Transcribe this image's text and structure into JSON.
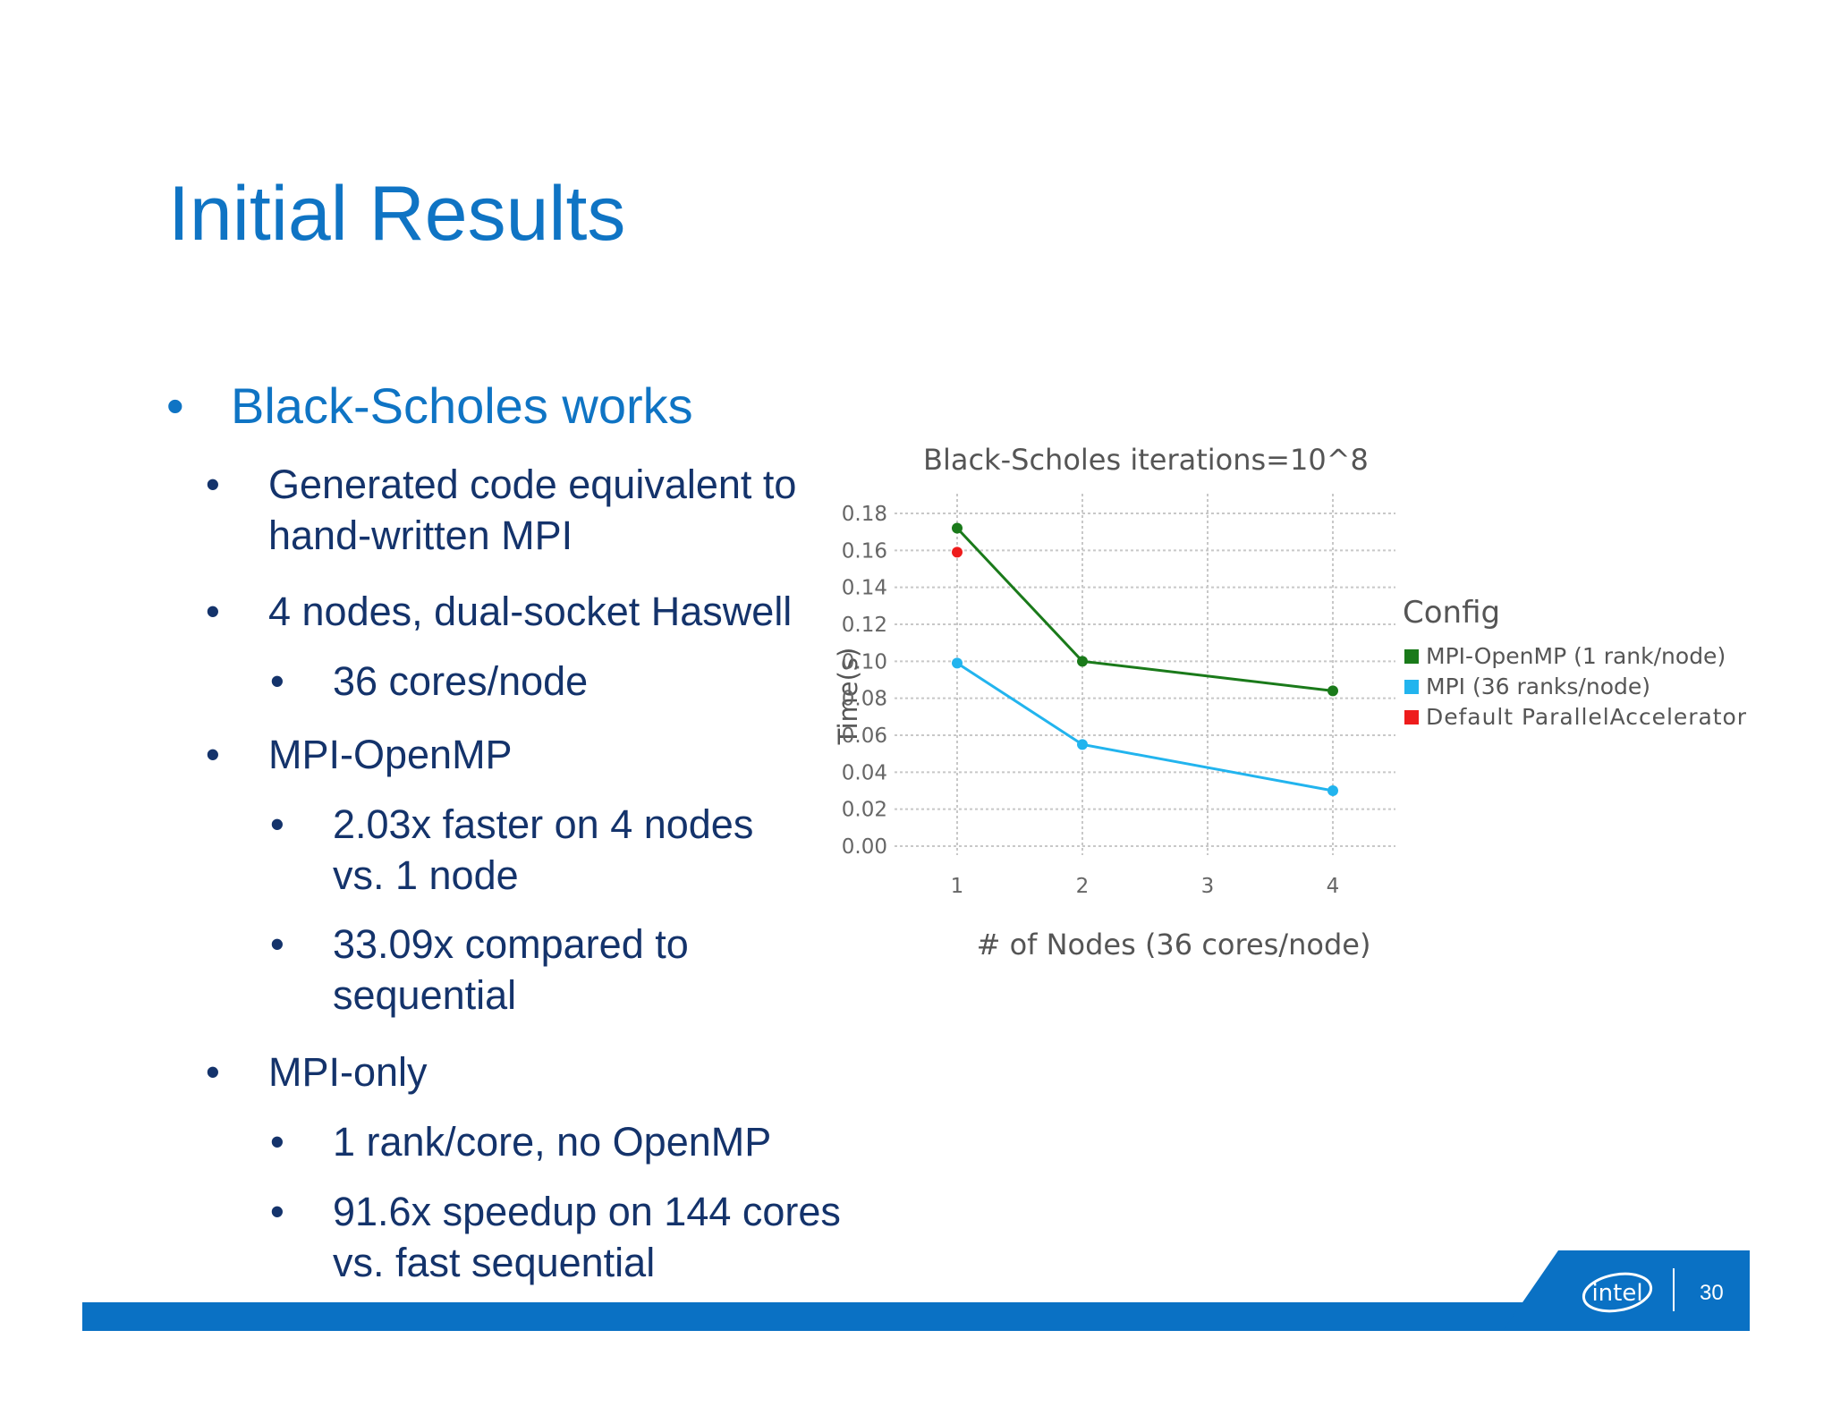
{
  "slide": {
    "title": "Initial Results",
    "page_number": "30",
    "logo_text": "intel"
  },
  "bullets": [
    {
      "level": 1,
      "text": "Black-Scholes works"
    },
    {
      "level": 2,
      "text": "Generated code equivalent to"
    },
    {
      "level": 2,
      "text": "hand-written MPI",
      "cont": true
    },
    {
      "level": 2,
      "text": "4 nodes, dual-socket Haswell"
    },
    {
      "level": 3,
      "text": "36 cores/node"
    },
    {
      "level": 2,
      "text": "MPI-OpenMP"
    },
    {
      "level": 3,
      "text": "2.03x faster on 4 nodes"
    },
    {
      "level": 3,
      "text": "vs. 1 node",
      "cont": true
    },
    {
      "level": 3,
      "text": "33.09x compared to"
    },
    {
      "level": 3,
      "text": "sequential",
      "cont": true
    },
    {
      "level": 2,
      "text": "MPI-only"
    },
    {
      "level": 3,
      "text": "1 rank/core, no OpenMP"
    },
    {
      "level": 3,
      "text": "91.6x speedup on 144 cores"
    },
    {
      "level": 3,
      "text": "vs. fast sequential",
      "cont": true
    }
  ],
  "bullet_glyph": "•",
  "colors": {
    "title": "#0f74c4",
    "body_text": "#14336b",
    "footer": "#0a71c4"
  },
  "chart_data": {
    "type": "line",
    "title": "Black-Scholes iterations=10^8",
    "xlabel": "# of Nodes (36 cores/node)",
    "ylabel": "Time(s)",
    "x_ticks": [
      1,
      2,
      3,
      4
    ],
    "ylim": [
      0,
      0.18
    ],
    "y_ticks": [
      "0.00",
      "0.02",
      "0.04",
      "0.06",
      "0.08",
      "0.10",
      "0.12",
      "0.14",
      "0.16",
      "0.18"
    ],
    "grid": true,
    "legend_title": "Config",
    "legend_position": "right",
    "series": [
      {
        "name": "MPI-OpenMP (1 rank/node)",
        "color": "#1a7a1a",
        "x": [
          1,
          2,
          4
        ],
        "y": [
          0.172,
          0.1,
          0.084
        ]
      },
      {
        "name": "MPI (36 ranks/node)",
        "color": "#22b4ee",
        "x": [
          1,
          2,
          4
        ],
        "y": [
          0.099,
          0.055,
          0.03
        ]
      },
      {
        "name": "Default ParallelAccelerator",
        "color": "#ee1c1c",
        "x": [
          1
        ],
        "y": [
          0.159
        ]
      }
    ]
  }
}
